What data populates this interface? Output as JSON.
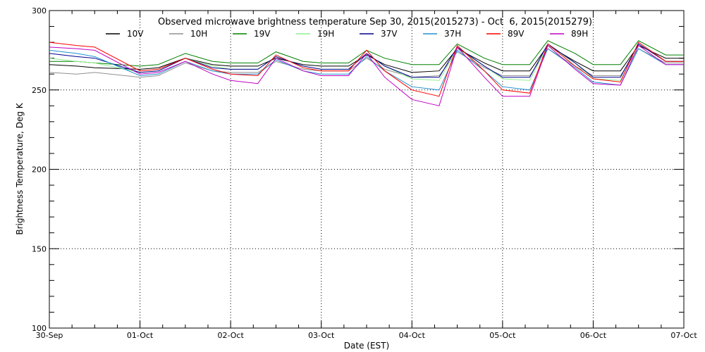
{
  "chart_data": {
    "type": "line",
    "title": "Observed microwave brightness temperature Sep 30, 2015(2015273) - Oct  6, 2015(2015279)",
    "xlabel": "Date (EST)",
    "ylabel": "Brightness Temperature, Deg K",
    "xlim": [
      0,
      7
    ],
    "ylim": [
      100,
      300
    ],
    "grid": true,
    "legend_placement": "top",
    "x_ticks": [
      {
        "value": 0,
        "label": "30-Sep"
      },
      {
        "value": 1,
        "label": "01-Oct"
      },
      {
        "value": 2,
        "label": "02-Oct"
      },
      {
        "value": 3,
        "label": "03-Oct"
      },
      {
        "value": 4,
        "label": "04-Oct"
      },
      {
        "value": 5,
        "label": "05-Oct"
      },
      {
        "value": 6,
        "label": "06-Oct"
      },
      {
        "value": 7,
        "label": "07-Oct"
      }
    ],
    "y_ticks": [
      {
        "value": 100,
        "label": "100"
      },
      {
        "value": 150,
        "label": "150"
      },
      {
        "value": 200,
        "label": "200"
      },
      {
        "value": 250,
        "label": "250"
      },
      {
        "value": 300,
        "label": "300"
      }
    ],
    "series": [
      {
        "name": "10V",
        "color": "#000000",
        "x": [
          0,
          0.3,
          0.5,
          1.0,
          1.2,
          1.5,
          1.8,
          2.0,
          2.3,
          2.5,
          2.8,
          3.0,
          3.3,
          3.5,
          3.7,
          4.0,
          4.3,
          4.5,
          4.8,
          5.0,
          5.3,
          5.5,
          5.8,
          6.0,
          6.3,
          6.5,
          6.8,
          7.0
        ],
        "y": [
          266,
          265,
          264,
          263,
          264,
          270,
          266,
          265,
          265,
          270,
          266,
          265,
          265,
          272,
          266,
          261,
          262,
          276,
          267,
          262,
          262,
          278,
          268,
          262,
          262,
          278,
          270,
          270
        ]
      },
      {
        "name": "10H",
        "color": "#909090",
        "x": [
          0,
          0.3,
          0.5,
          1.0,
          1.2,
          1.5,
          1.8,
          2.0,
          2.3,
          2.5,
          2.8,
          3.0,
          3.3,
          3.5,
          3.7,
          4.0,
          4.3,
          4.5,
          4.8,
          5.0,
          5.3,
          5.5,
          5.8,
          6.0,
          6.3,
          6.5,
          6.8,
          7.0
        ],
        "y": [
          261,
          260,
          261,
          258,
          259,
          267,
          262,
          261,
          261,
          268,
          263,
          262,
          262,
          270,
          263,
          258,
          259,
          274,
          264,
          259,
          259,
          276,
          265,
          259,
          259,
          276,
          267,
          267
        ]
      },
      {
        "name": "19V",
        "color": "#008000",
        "x": [
          0,
          0.3,
          0.5,
          1.0,
          1.2,
          1.5,
          1.8,
          2.0,
          2.3,
          2.5,
          2.8,
          3.0,
          3.3,
          3.5,
          3.7,
          4.0,
          4.3,
          4.5,
          4.8,
          5.0,
          5.3,
          5.5,
          5.8,
          6.0,
          6.3,
          6.5,
          6.8,
          7.0
        ],
        "y": [
          268,
          268,
          267,
          265,
          266,
          273,
          268,
          267,
          267,
          274,
          268,
          267,
          267,
          275,
          270,
          266,
          266,
          279,
          270,
          266,
          266,
          281,
          273,
          266,
          266,
          281,
          272,
          272
        ]
      },
      {
        "name": "19H",
        "color": "#90ee90",
        "x": [
          0,
          0.3,
          0.5,
          1.0,
          1.2,
          1.5,
          1.8,
          2.0,
          2.3,
          2.5,
          2.8,
          3.0,
          3.3,
          3.5,
          3.7,
          4.0,
          4.3,
          4.5,
          4.8,
          5.0,
          5.3,
          5.5,
          5.8,
          6.0,
          6.3,
          6.5,
          6.8,
          7.0
        ],
        "y": [
          270,
          268,
          267,
          261,
          262,
          270,
          265,
          263,
          263,
          271,
          265,
          263,
          263,
          273,
          265,
          257,
          256,
          276,
          265,
          257,
          256,
          278,
          267,
          257,
          256,
          279,
          268,
          268
        ]
      },
      {
        "name": "37V",
        "color": "#000090",
        "x": [
          0,
          0.3,
          0.5,
          1.0,
          1.2,
          1.5,
          1.8,
          2.0,
          2.3,
          2.5,
          2.8,
          3.0,
          3.3,
          3.5,
          3.7,
          4.0,
          4.3,
          4.5,
          4.8,
          5.0,
          5.3,
          5.5,
          5.8,
          6.0,
          6.3,
          6.5,
          6.8,
          7.0
        ],
        "y": [
          273,
          271,
          270,
          261,
          262,
          270,
          264,
          263,
          263,
          271,
          265,
          263,
          263,
          273,
          265,
          258,
          258,
          277,
          265,
          258,
          258,
          279,
          267,
          258,
          258,
          279,
          268,
          268
        ]
      },
      {
        "name": "37H",
        "color": "#2090d0",
        "x": [
          0,
          0.3,
          0.5,
          1.0,
          1.2,
          1.5,
          1.8,
          2.0,
          2.3,
          2.5,
          2.8,
          3.0,
          3.3,
          3.5,
          3.7,
          4.0,
          4.3,
          4.5,
          4.8,
          5.0,
          5.3,
          5.5,
          5.8,
          6.0,
          6.3,
          6.5,
          6.8,
          7.0
        ],
        "y": [
          275,
          273,
          271,
          259,
          260,
          268,
          262,
          260,
          260,
          269,
          262,
          260,
          260,
          271,
          262,
          252,
          250,
          275,
          262,
          252,
          250,
          276,
          264,
          255,
          253,
          276,
          266,
          266
        ]
      },
      {
        "name": "89V",
        "color": "#ff0000",
        "x": [
          0,
          0.3,
          0.5,
          1.0,
          1.2,
          1.5,
          1.8,
          2.0,
          2.3,
          2.5,
          2.8,
          3.0,
          3.3,
          3.5,
          3.7,
          4.0,
          4.3,
          4.5,
          4.8,
          5.0,
          5.3,
          5.5,
          5.8,
          6.0,
          6.3,
          6.5,
          6.8,
          7.0
        ],
        "y": [
          280,
          278,
          277,
          262,
          263,
          270,
          263,
          260,
          259,
          272,
          264,
          262,
          262,
          275,
          262,
          250,
          246,
          278,
          262,
          250,
          248,
          279,
          265,
          257,
          255,
          280,
          268,
          268
        ]
      },
      {
        "name": "89H",
        "color": "#c000c0",
        "x": [
          0,
          0.3,
          0.5,
          1.0,
          1.2,
          1.5,
          1.8,
          2.0,
          2.3,
          2.5,
          2.8,
          3.0,
          3.3,
          3.5,
          3.7,
          4.0,
          4.3,
          4.5,
          4.8,
          5.0,
          5.3,
          5.5,
          5.8,
          6.0,
          6.3,
          6.5,
          6.8,
          7.0
        ],
        "y": [
          277,
          276,
          275,
          260,
          261,
          268,
          260,
          256,
          254,
          270,
          262,
          259,
          259,
          273,
          258,
          244,
          240,
          277,
          258,
          246,
          246,
          278,
          263,
          254,
          253,
          278,
          266,
          266
        ]
      }
    ]
  }
}
